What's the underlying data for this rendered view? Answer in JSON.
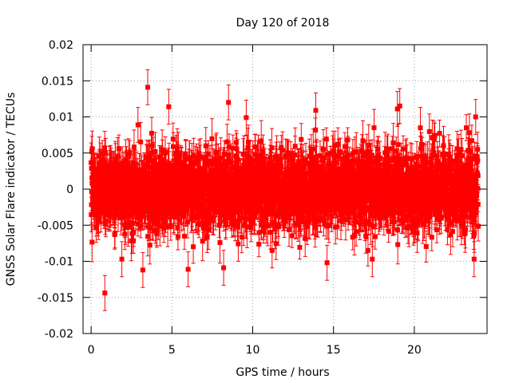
{
  "chart_data": {
    "type": "scatter",
    "title": "Day 120 of 2018",
    "xlabel": "GPS time / hours",
    "ylabel": "GNSS Solar Flare indicator / TECUs",
    "xlim": [
      -0.5,
      24.5
    ],
    "ylim": [
      -0.02,
      0.02
    ],
    "xticks": [
      0,
      5,
      10,
      15,
      20
    ],
    "xtick_labels": [
      "0",
      "5",
      "10",
      "15",
      "20"
    ],
    "yticks": [
      -0.02,
      -0.015,
      -0.01,
      -0.005,
      0,
      0.005,
      0.01,
      0.015,
      0.02
    ],
    "ytick_labels": [
      "-0.02",
      "-0.015",
      "-0.01",
      "-0.005",
      "0",
      "0.005",
      "0.01",
      "0.015",
      "0.02"
    ],
    "grid": true,
    "series": [
      {
        "name": "GNSS solar flare indicator",
        "color": "#ff0000",
        "marker": "square",
        "error_bars": true,
        "x_start": 0.0,
        "x_end": 23.96,
        "interval_hours": 0.00833,
        "typical_abs_error": 0.0022,
        "values_summary": "dense noise around 0 mostly within ±0.007 TECU",
        "outliers": [
          {
            "x": 3.5,
            "y": 0.0141
          },
          {
            "x": 0.85,
            "y": -0.0144
          },
          {
            "x": 8.5,
            "y": 0.012
          },
          {
            "x": 13.9,
            "y": 0.0109
          },
          {
            "x": 18.95,
            "y": 0.0111
          },
          {
            "x": 19.1,
            "y": 0.0115
          },
          {
            "x": 23.8,
            "y": 0.01
          },
          {
            "x": 2.9,
            "y": 0.0089
          },
          {
            "x": 4.8,
            "y": 0.0114
          },
          {
            "x": 9.6,
            "y": 0.0099
          },
          {
            "x": 3.2,
            "y": -0.0112
          },
          {
            "x": 6.0,
            "y": -0.0111
          },
          {
            "x": 8.2,
            "y": -0.0109
          },
          {
            "x": 14.6,
            "y": -0.0102
          },
          {
            "x": 23.7,
            "y": -0.0097
          },
          {
            "x": 1.9,
            "y": -0.0097
          },
          {
            "x": 17.4,
            "y": -0.0097
          },
          {
            "x": 11.2,
            "y": -0.0085
          }
        ]
      }
    ]
  }
}
